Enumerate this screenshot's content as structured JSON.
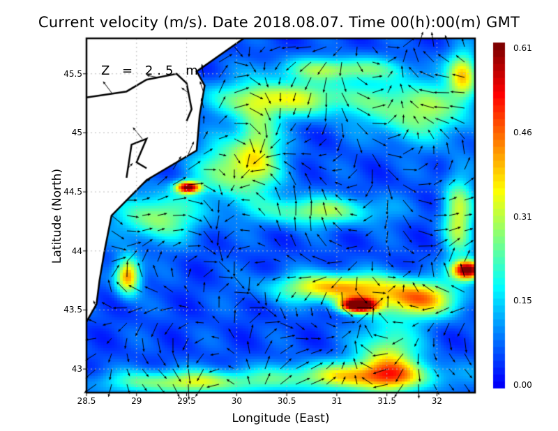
{
  "title": "Current velocity (m/s). Date 2018.08.07. Time 00(h):00(m) GMT",
  "depth_label": "Z = 2.5 m",
  "chart_data": {
    "type": "heatmap",
    "title": "Current velocity (m/s). Date 2018.08.07. Time 00(h):00(m) GMT",
    "xlabel": "Longitude (East)",
    "ylabel": "Latitude (North)",
    "xlim": [
      28.5,
      32.38
    ],
    "ylim": [
      42.8,
      45.8
    ],
    "x_ticks": [
      "28.5",
      "29",
      "29.5",
      "30",
      "30.5",
      "31",
      "31.5",
      "32"
    ],
    "y_ticks": [
      "45.5",
      "45",
      "44.5",
      "44",
      "43.5",
      "43"
    ],
    "grid": true,
    "colorbar": {
      "ticks": [
        "0.61",
        "0.46",
        "0.31",
        "0.15",
        "0.00"
      ],
      "range": [
        0.0,
        0.61
      ],
      "colormap": "jet",
      "placement": "right"
    },
    "overlay": "velocity vectors (arrows)",
    "land_color": "#ffffff",
    "coastline_color": "#000000"
  }
}
